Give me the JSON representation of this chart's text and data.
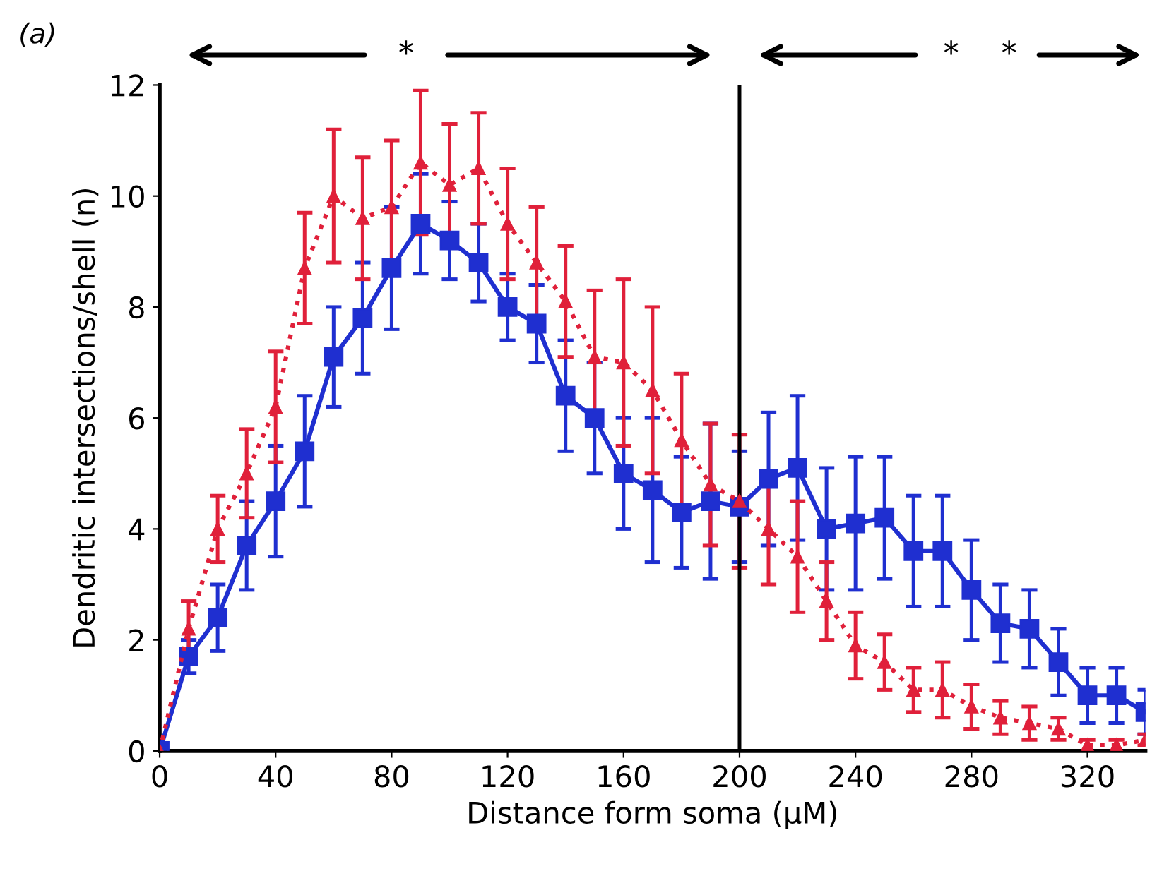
{
  "chart_data": {
    "type": "line",
    "xlabel": "Distance form soma (μM)",
    "ylabel": "Dendritic intersections/shell (n)",
    "annotations": [
      "(a)",
      "*",
      "*",
      "*"
    ],
    "x": [
      0,
      10,
      20,
      30,
      40,
      50,
      60,
      70,
      80,
      90,
      100,
      110,
      120,
      130,
      140,
      150,
      160,
      170,
      180,
      190,
      200,
      210,
      220,
      230,
      240,
      250,
      260,
      270,
      280,
      290,
      300,
      310,
      320,
      330,
      340
    ],
    "series": [
      {
        "color": "#1f2fd0",
        "marker": "square",
        "line_style": "solid",
        "values": [
          0,
          1.7,
          2.4,
          3.7,
          4.5,
          5.4,
          7.1,
          7.8,
          8.7,
          9.5,
          9.2,
          8.8,
          8.0,
          7.7,
          6.4,
          6.0,
          5.0,
          4.7,
          4.3,
          4.5,
          4.4,
          4.9,
          5.1,
          4.0,
          4.1,
          4.2,
          3.6,
          3.6,
          2.9,
          2.3,
          2.2,
          1.6,
          1.0,
          1.0,
          0.7
        ],
        "errors": [
          null,
          0.3,
          0.6,
          0.8,
          1.0,
          1.0,
          0.9,
          1.0,
          1.1,
          0.9,
          0.7,
          0.7,
          0.6,
          0.7,
          1.0,
          1.0,
          1.0,
          1.3,
          1.0,
          1.4,
          1.0,
          1.2,
          1.3,
          1.1,
          1.2,
          1.1,
          1.0,
          1.0,
          0.9,
          0.7,
          0.7,
          0.6,
          0.5,
          0.5,
          0.4
        ]
      },
      {
        "color": "#e0203a",
        "marker": "triangle",
        "line_style": "dotted",
        "values": [
          0,
          2.2,
          4.0,
          5.0,
          6.2,
          8.7,
          10.0,
          9.6,
          9.8,
          10.6,
          10.2,
          10.5,
          9.5,
          8.8,
          8.1,
          7.1,
          7.0,
          6.5,
          5.6,
          4.8,
          4.5,
          4.0,
          3.5,
          2.7,
          1.9,
          1.6,
          1.1,
          1.1,
          0.8,
          0.6,
          0.5,
          0.4,
          0.1,
          0.1,
          0.2
        ],
        "errors": [
          null,
          0.5,
          0.6,
          0.8,
          1.0,
          1.0,
          1.2,
          1.1,
          1.2,
          1.3,
          1.1,
          1.0,
          1.0,
          1.0,
          1.0,
          1.2,
          1.5,
          1.5,
          1.2,
          1.1,
          1.2,
          1.0,
          1.0,
          0.7,
          0.6,
          0.5,
          0.4,
          0.5,
          0.4,
          0.3,
          0.3,
          0.2,
          0.1,
          0.1,
          0.1
        ]
      }
    ],
    "ref_lines": [
      {
        "axis": "x",
        "value": 200,
        "color": "#000000"
      }
    ],
    "xlim": [
      0,
      340
    ],
    "xticks": [
      0,
      40,
      80,
      120,
      160,
      200,
      240,
      280,
      320
    ],
    "ylim": [
      0,
      12
    ],
    "yticks": [
      0,
      2,
      4,
      6,
      8,
      10,
      12
    ],
    "grid": false,
    "legend": false
  }
}
